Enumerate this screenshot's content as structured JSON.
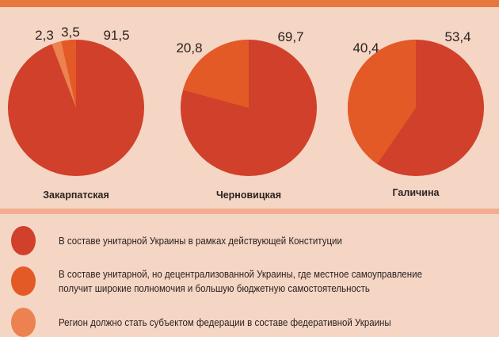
{
  "colors": {
    "unitary": "#d0402a",
    "decentralized": "#e35a27",
    "federation": "#ec8250",
    "background": "#f5d5c4",
    "top_bar": "#e8773f",
    "divider": "#f3ae90"
  },
  "chart_data": [
    {
      "type": "pie",
      "title": "Закарпатская",
      "slices": [
        {
          "series": "unitary",
          "value": 91.5,
          "label": "91,5"
        },
        {
          "series": "decentralized",
          "value": 3.5,
          "label": "3,5"
        },
        {
          "series": "federation",
          "value": 2.3,
          "label": "2,3"
        }
      ]
    },
    {
      "type": "pie",
      "title": "Черновицкая",
      "slices": [
        {
          "series": "unitary",
          "value": 69.7,
          "label": "69,7"
        },
        {
          "series": "decentralized",
          "value": 20.8,
          "label": "20,8"
        }
      ]
    },
    {
      "type": "pie",
      "title": "Галичина",
      "slices": [
        {
          "series": "unitary",
          "value": 53.4,
          "label": "53,4"
        },
        {
          "series": "decentralized",
          "value": 40.4,
          "label": "40,4"
        }
      ]
    }
  ],
  "legend": [
    {
      "series": "unitary",
      "text": "В составе унитарной Украины в рамках действующей Конституции"
    },
    {
      "series": "decentralized",
      "text": "В составе унитарной, но децентрализованной Украины, где местное самоуправление получит широкие полномочия и большую бюджетную самостоятельность"
    },
    {
      "series": "federation",
      "text": "Регион должно стать субъектом федерации в составе федеративной Украины"
    }
  ]
}
